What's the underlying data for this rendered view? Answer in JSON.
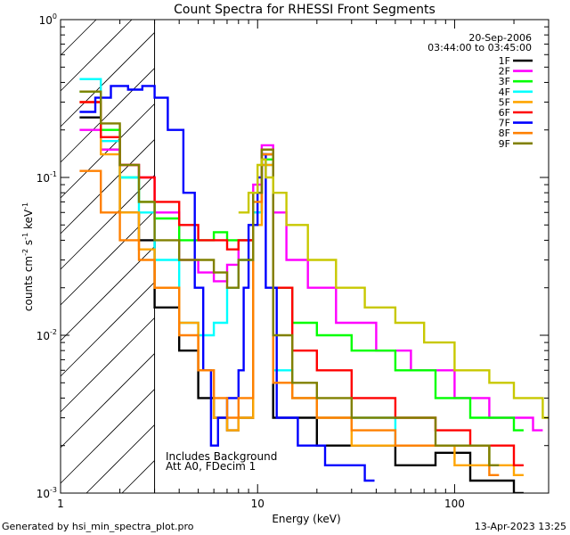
{
  "chart_data": {
    "type": "line",
    "title": "Count Spectra for RHESSI Front Segments",
    "xlabel": "Energy (keV)",
    "ylabel_parts": {
      "base": "counts cm",
      "sup1": "-2",
      "mid1": " s",
      "sup2": "-1",
      "mid2": " keV",
      "sup3": "-1"
    },
    "x_scale": "log",
    "y_scale": "log",
    "xlim": [
      1,
      300
    ],
    "ylim": [
      0.001,
      1.0
    ],
    "x_ticks": [
      {
        "value": 1,
        "label": "1"
      },
      {
        "value": 10,
        "label": "10"
      },
      {
        "value": 100,
        "label": "100"
      }
    ],
    "y_ticks": [
      {
        "value": 1,
        "base": "10",
        "exp": "0"
      },
      {
        "value": 0.1,
        "base": "10",
        "exp": "-1"
      },
      {
        "value": 0.01,
        "base": "10",
        "exp": "-2"
      },
      {
        "value": 0.001,
        "base": "10",
        "exp": "-3"
      }
    ],
    "date_text": "20-Sep-2006",
    "time_range_text": "03:44:00 to 03:45:00",
    "attenuator_threshold_keV": 3,
    "annotations": [
      "Includes Background",
      "Att A0, FDecim 1"
    ],
    "series": [
      {
        "name": "1F",
        "color": "#000000",
        "points": [
          [
            1.25,
            0.24
          ],
          [
            1.6,
            0.15
          ],
          [
            2.0,
            0.06
          ],
          [
            2.5,
            0.04
          ],
          [
            3.0,
            0.015
          ],
          [
            4.0,
            0.008
          ],
          [
            5.0,
            0.004
          ],
          [
            6.0,
            0.003
          ],
          [
            7.0,
            0.0025
          ],
          [
            8.0,
            0.003
          ],
          [
            9.5,
            0.06
          ],
          [
            10.5,
            0.14
          ],
          [
            12.0,
            0.003
          ],
          [
            15.0,
            0.003
          ],
          [
            20.0,
            0.002
          ],
          [
            30.0,
            0.002
          ],
          [
            50.0,
            0.0015
          ],
          [
            80.0,
            0.0018
          ],
          [
            120.0,
            0.0012
          ],
          [
            200.0,
            0.001
          ]
        ]
      },
      {
        "name": "2F",
        "color": "#ff00ff",
        "points": [
          [
            1.25,
            0.2
          ],
          [
            1.6,
            0.15
          ],
          [
            2.0,
            0.12
          ],
          [
            2.5,
            0.1
          ],
          [
            3.0,
            0.06
          ],
          [
            4.0,
            0.03
          ],
          [
            5.0,
            0.025
          ],
          [
            6.0,
            0.022
          ],
          [
            7.0,
            0.028
          ],
          [
            8.0,
            0.04
          ],
          [
            9.5,
            0.09
          ],
          [
            10.5,
            0.16
          ],
          [
            12.0,
            0.06
          ],
          [
            14.0,
            0.03
          ],
          [
            18.0,
            0.02
          ],
          [
            25.0,
            0.012
          ],
          [
            40.0,
            0.008
          ],
          [
            60.0,
            0.006
          ],
          [
            100.0,
            0.004
          ],
          [
            150.0,
            0.003
          ],
          [
            250.0,
            0.0025
          ]
        ]
      },
      {
        "name": "3F",
        "color": "#00ff00",
        "points": [
          [
            1.25,
            0.35
          ],
          [
            1.6,
            0.2
          ],
          [
            2.0,
            0.1
          ],
          [
            2.5,
            0.07
          ],
          [
            3.0,
            0.055
          ],
          [
            4.0,
            0.04
          ],
          [
            5.0,
            0.04
          ],
          [
            6.0,
            0.045
          ],
          [
            7.0,
            0.04
          ],
          [
            8.0,
            0.04
          ],
          [
            9.5,
            0.08
          ],
          [
            10.5,
            0.13
          ],
          [
            12.0,
            0.02
          ],
          [
            15.0,
            0.012
          ],
          [
            20.0,
            0.01
          ],
          [
            30.0,
            0.008
          ],
          [
            50.0,
            0.006
          ],
          [
            80.0,
            0.004
          ],
          [
            120.0,
            0.003
          ],
          [
            200.0,
            0.0025
          ]
        ]
      },
      {
        "name": "4F",
        "color": "#00ffff",
        "points": [
          [
            1.25,
            0.42
          ],
          [
            1.6,
            0.17
          ],
          [
            2.0,
            0.1
          ],
          [
            2.5,
            0.06
          ],
          [
            3.0,
            0.03
          ],
          [
            4.0,
            0.012
          ],
          [
            5.0,
            0.01
          ],
          [
            6.0,
            0.012
          ],
          [
            7.0,
            0.02
          ],
          [
            8.0,
            0.03
          ],
          [
            9.5,
            0.06
          ],
          [
            10.5,
            0.12
          ],
          [
            12.0,
            0.006
          ],
          [
            15.0,
            0.004
          ],
          [
            20.0,
            0.003
          ],
          [
            30.0,
            0.003
          ],
          [
            50.0,
            0.002
          ],
          [
            80.0,
            0.002
          ],
          [
            150.0,
            0.0015
          ]
        ]
      },
      {
        "name": "5F",
        "color": "#ffa500",
        "points": [
          [
            1.25,
            0.3
          ],
          [
            1.6,
            0.14
          ],
          [
            2.0,
            0.06
          ],
          [
            2.5,
            0.035
          ],
          [
            3.0,
            0.02
          ],
          [
            4.0,
            0.012
          ],
          [
            5.0,
            0.006
          ],
          [
            6.0,
            0.003
          ],
          [
            7.0,
            0.0025
          ],
          [
            8.0,
            0.003
          ],
          [
            9.5,
            0.05
          ],
          [
            10.5,
            0.12
          ],
          [
            12.0,
            0.005
          ],
          [
            15.0,
            0.004
          ],
          [
            20.0,
            0.003
          ],
          [
            30.0,
            0.002
          ],
          [
            60.0,
            0.002
          ],
          [
            100.0,
            0.0015
          ],
          [
            200.0,
            0.0013
          ]
        ]
      },
      {
        "name": "6F",
        "color": "#ff0000",
        "points": [
          [
            1.25,
            0.3
          ],
          [
            1.6,
            0.18
          ],
          [
            2.0,
            0.12
          ],
          [
            2.5,
            0.1
          ],
          [
            3.0,
            0.07
          ],
          [
            4.0,
            0.05
          ],
          [
            5.0,
            0.04
          ],
          [
            6.0,
            0.04
          ],
          [
            7.0,
            0.035
          ],
          [
            8.0,
            0.04
          ],
          [
            9.5,
            0.08
          ],
          [
            10.5,
            0.15
          ],
          [
            12.0,
            0.02
          ],
          [
            15.0,
            0.008
          ],
          [
            20.0,
            0.006
          ],
          [
            30.0,
            0.004
          ],
          [
            50.0,
            0.003
          ],
          [
            80.0,
            0.0025
          ],
          [
            120.0,
            0.002
          ],
          [
            200.0,
            0.0015
          ]
        ]
      },
      {
        "name": "7F",
        "color": "#0000ff",
        "points": [
          [
            1.25,
            0.26
          ],
          [
            1.5,
            0.32
          ],
          [
            1.8,
            0.38
          ],
          [
            2.2,
            0.36
          ],
          [
            2.6,
            0.38
          ],
          [
            3.0,
            0.32
          ],
          [
            3.5,
            0.2
          ],
          [
            4.2,
            0.08
          ],
          [
            4.8,
            0.02
          ],
          [
            5.3,
            0.006
          ],
          [
            5.8,
            0.002
          ],
          [
            6.3,
            0.003
          ],
          [
            7.0,
            0.004
          ],
          [
            8.0,
            0.006
          ],
          [
            8.5,
            0.02
          ],
          [
            9.0,
            0.05
          ],
          [
            10.0,
            0.1
          ],
          [
            10.5,
            0.14
          ],
          [
            11.0,
            0.02
          ],
          [
            12.5,
            0.003
          ],
          [
            16.0,
            0.002
          ],
          [
            22.0,
            0.0015
          ],
          [
            35.0,
            0.0012
          ]
        ]
      },
      {
        "name": "8F",
        "color": "#ff8000",
        "points": [
          [
            1.25,
            0.11
          ],
          [
            1.6,
            0.06
          ],
          [
            2.0,
            0.04
          ],
          [
            2.5,
            0.03
          ],
          [
            3.0,
            0.02
          ],
          [
            4.0,
            0.01
          ],
          [
            5.0,
            0.006
          ],
          [
            6.0,
            0.004
          ],
          [
            7.0,
            0.003
          ],
          [
            8.0,
            0.004
          ],
          [
            9.5,
            0.07
          ],
          [
            10.5,
            0.14
          ],
          [
            12.0,
            0.005
          ],
          [
            15.0,
            0.004
          ],
          [
            20.0,
            0.003
          ],
          [
            30.0,
            0.0025
          ],
          [
            50.0,
            0.002
          ],
          [
            80.0,
            0.002
          ],
          [
            150.0,
            0.0013
          ]
        ]
      },
      {
        "name": "9F",
        "color": "#808000",
        "points": [
          [
            1.25,
            0.35
          ],
          [
            1.6,
            0.22
          ],
          [
            2.0,
            0.12
          ],
          [
            2.5,
            0.07
          ],
          [
            3.0,
            0.04
          ],
          [
            4.0,
            0.03
          ],
          [
            5.0,
            0.03
          ],
          [
            6.0,
            0.025
          ],
          [
            7.0,
            0.02
          ],
          [
            8.0,
            0.03
          ],
          [
            9.5,
            0.08
          ],
          [
            10.5,
            0.15
          ],
          [
            12.0,
            0.01
          ],
          [
            15.0,
            0.005
          ],
          [
            20.0,
            0.004
          ],
          [
            30.0,
            0.003
          ],
          [
            50.0,
            0.003
          ],
          [
            80.0,
            0.002
          ],
          [
            150.0,
            0.0015
          ]
        ]
      },
      {
        "name": "",
        "color": "#c8c800",
        "points": [
          [
            8.0,
            0.06
          ],
          [
            9.0,
            0.08
          ],
          [
            10.0,
            0.12
          ],
          [
            10.5,
            0.13
          ],
          [
            11.0,
            0.1
          ],
          [
            12.0,
            0.08
          ],
          [
            14.0,
            0.05
          ],
          [
            18.0,
            0.03
          ],
          [
            25.0,
            0.02
          ],
          [
            35.0,
            0.015
          ],
          [
            50.0,
            0.012
          ],
          [
            70.0,
            0.009
          ],
          [
            100.0,
            0.006
          ],
          [
            150.0,
            0.005
          ],
          [
            200.0,
            0.004
          ],
          [
            280.0,
            0.003
          ]
        ]
      }
    ]
  },
  "footer": {
    "generated_by": "Generated by hsi_min_spectra_plot.pro",
    "timestamp": "13-Apr-2023 13:25"
  }
}
